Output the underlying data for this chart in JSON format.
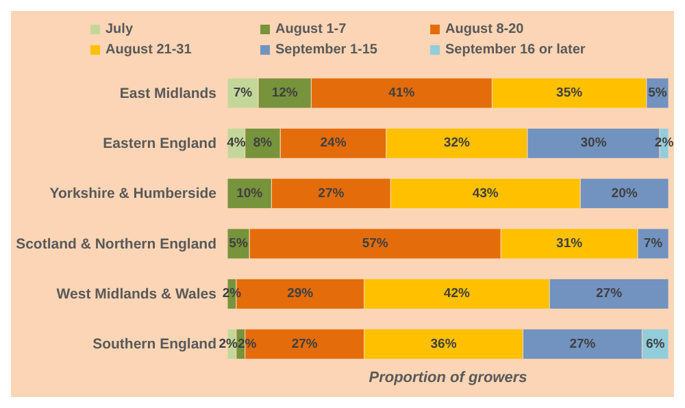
{
  "chart_data": {
    "type": "bar",
    "orientation": "horizontal",
    "stacked": true,
    "xlabel": "Proportion of growers",
    "legend": "top",
    "tick_labels": "y",
    "categories": [
      "East Midlands",
      "Eastern England",
      "Yorkshire & Humberside",
      "Scotland & Northern England",
      "West Midlands & Wales",
      "Southern England"
    ],
    "series": [
      {
        "name": "July",
        "color": "#c4d79b",
        "values": [
          7,
          4,
          null,
          null,
          null,
          2
        ],
        "value_labels": [
          "7%",
          "4%",
          null,
          null,
          null,
          "2%"
        ]
      },
      {
        "name": "August 1-7",
        "color": "#77933c",
        "values": [
          12,
          8,
          10,
          5,
          2,
          2
        ],
        "value_labels": [
          "12%",
          "8%",
          "10%",
          "5%",
          "2%",
          "2%"
        ]
      },
      {
        "name": "August 8-20",
        "color": "#e46c0a",
        "values": [
          41,
          24,
          27,
          57,
          29,
          27
        ],
        "value_labels": [
          "41%",
          "24%",
          "27%",
          "57%",
          "29%",
          "27%"
        ]
      },
      {
        "name": "August 21-31",
        "color": "#ffc000",
        "values": [
          35,
          32,
          43,
          31,
          42,
          36
        ],
        "value_labels": [
          "35%",
          "32%",
          "43%",
          "31%",
          "42%",
          "36%"
        ]
      },
      {
        "name": "September 1-15",
        "color": "#7293bf",
        "values": [
          5,
          30,
          20,
          7,
          27,
          27
        ],
        "value_labels": [
          "5%",
          "30%",
          "20%",
          "7%",
          "27%",
          "27%"
        ]
      },
      {
        "name": "September 16 or later",
        "color": "#92cddc",
        "values": [
          null,
          2,
          null,
          null,
          null,
          6
        ],
        "value_labels": [
          null,
          "2%",
          null,
          null,
          null,
          "6%"
        ]
      }
    ]
  }
}
